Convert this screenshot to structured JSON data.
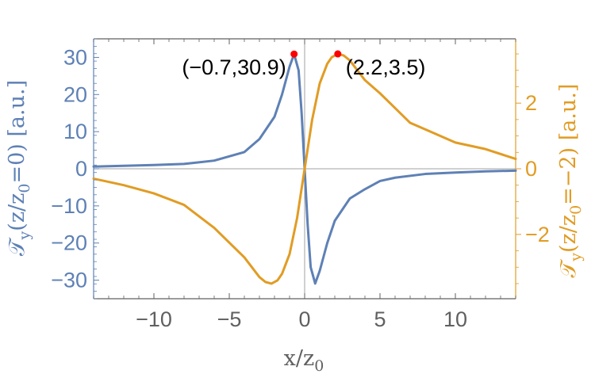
{
  "chart_data": {
    "type": "line",
    "x_range": [
      -14,
      14
    ],
    "left_y_range": [
      -35,
      35
    ],
    "right_y_range": [
      -3.96,
      3.96
    ],
    "x_ticks": [
      -10,
      -5,
      0,
      5,
      10
    ],
    "x_tick_labels": [
      "−10",
      "−5",
      "0",
      "5",
      "10"
    ],
    "left_ticks": [
      30,
      20,
      10,
      0,
      -10,
      -20,
      -30
    ],
    "left_tick_labels": [
      "30",
      "20",
      "10",
      "0",
      "−10",
      "−20",
      "−30"
    ],
    "right_ticks": [
      2,
      0,
      -2
    ],
    "right_tick_labels": [
      "2",
      "0",
      "−2"
    ],
    "xlabel_main": "x/z",
    "xlabel_sub": "0",
    "ylabel_left": {
      "prefix": "𝒯",
      "sub_y": "y",
      "mid": "(z/z",
      "sub_0": "0",
      "suffix": "=0) [a.u.]"
    },
    "ylabel_right": {
      "prefix": "𝒯",
      "sub_y": "y",
      "mid": "(z/z",
      "sub_0": "0",
      "suffix": "=−2) [a.u.]"
    },
    "grid": false,
    "series": [
      {
        "axis": "left",
        "color": "#5e81b5",
        "x": [
          -14,
          -12,
          -10,
          -8,
          -6,
          -4,
          -3,
          -2,
          -1.5,
          -1,
          -0.7,
          -0.4,
          -0.2,
          0,
          0.2,
          0.4,
          0.7,
          1,
          1.5,
          2,
          3,
          4,
          5,
          6,
          8,
          10,
          12,
          14
        ],
        "y": [
          0.6,
          0.8,
          1.0,
          1.3,
          2.2,
          4.5,
          8.0,
          14.0,
          20.0,
          27.5,
          30.9,
          26.5,
          15.0,
          0,
          -15.0,
          -26.5,
          -30.9,
          -27.5,
          -20.0,
          -14.0,
          -8.0,
          -5.5,
          -3.3,
          -2.4,
          -1.4,
          -1.0,
          -0.7,
          -0.5
        ]
      },
      {
        "axis": "right",
        "color": "#e19c24",
        "x": [
          -14,
          -12,
          -10,
          -8,
          -6,
          -4,
          -3,
          -2.6,
          -2.2,
          -1.8,
          -1.5,
          -1,
          -0.5,
          0,
          0.5,
          1,
          1.5,
          1.8,
          2.2,
          2.6,
          3,
          4,
          5,
          7,
          8,
          10,
          12,
          14
        ],
        "y": [
          -0.3,
          -0.5,
          -0.75,
          -1.1,
          -1.8,
          -2.7,
          -3.3,
          -3.45,
          -3.5,
          -3.4,
          -3.2,
          -2.6,
          -1.5,
          0,
          1.5,
          2.6,
          3.2,
          3.4,
          3.5,
          3.45,
          3.3,
          2.7,
          2.3,
          1.4,
          1.2,
          0.8,
          0.6,
          0.3
        ]
      }
    ],
    "annotations": [
      {
        "axis": "left",
        "x": -0.7,
        "y": 30.9,
        "label": "(−0.7,30.9)",
        "anchor": "end"
      },
      {
        "axis": "right",
        "x": 2.2,
        "y": 3.5,
        "label": "(2.2,3.5)",
        "anchor": "start"
      }
    ],
    "marker_color": "#ff0000",
    "left_axis_color": "#5e81b5",
    "right_axis_color": "#e19c24",
    "x_axis_color": "#606060"
  }
}
